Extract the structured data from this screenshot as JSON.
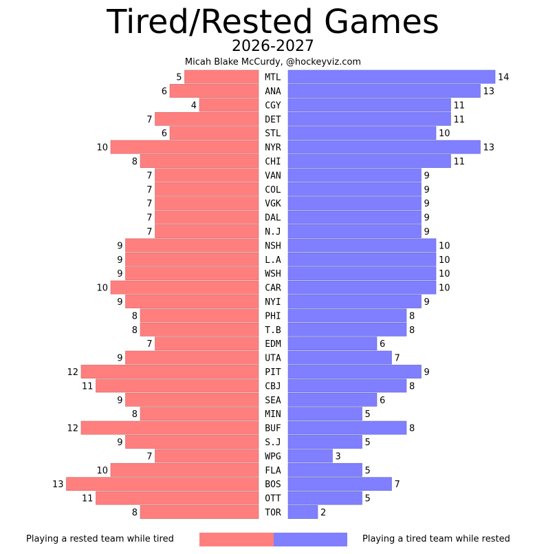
{
  "title": "Tired/Rested Games",
  "subtitle": "2026-2027",
  "byline": "Micah Blake McCurdy, @hockeyviz.com",
  "colors": {
    "tired": "#ff7f7f",
    "rested": "#7f7fff"
  },
  "legend": {
    "tired_label": "Playing a rested team while tired",
    "rested_label": "Playing a tired team while rested"
  },
  "chart_data": {
    "type": "bar",
    "orientation": "horizontal-butterfly",
    "categories": [
      "MTL",
      "ANA",
      "CGY",
      "DET",
      "STL",
      "NYR",
      "CHI",
      "VAN",
      "COL",
      "VGK",
      "DAL",
      "N.J",
      "NSH",
      "L.A",
      "WSH",
      "CAR",
      "NYI",
      "PHI",
      "T.B",
      "EDM",
      "UTA",
      "PIT",
      "CBJ",
      "SEA",
      "MIN",
      "BUF",
      "S.J",
      "WPG",
      "FLA",
      "BOS",
      "OTT",
      "TOR"
    ],
    "series": [
      {
        "name": "Playing a rested team while tired",
        "side": "left",
        "values": [
          5,
          6,
          4,
          7,
          6,
          10,
          8,
          7,
          7,
          7,
          7,
          7,
          9,
          9,
          9,
          10,
          9,
          8,
          8,
          7,
          9,
          12,
          11,
          9,
          8,
          12,
          9,
          7,
          10,
          13,
          11,
          8
        ]
      },
      {
        "name": "Playing a tired team while rested",
        "side": "right",
        "values": [
          14,
          13,
          11,
          11,
          10,
          13,
          11,
          9,
          9,
          9,
          9,
          9,
          10,
          10,
          10,
          10,
          9,
          8,
          8,
          6,
          7,
          9,
          8,
          6,
          5,
          8,
          5,
          3,
          5,
          7,
          5,
          2
        ]
      }
    ],
    "title": "Tired/Rested Games",
    "subtitle": "2026-2027",
    "xlim": [
      0,
      14
    ],
    "grid": false,
    "legend_position": "bottom"
  }
}
